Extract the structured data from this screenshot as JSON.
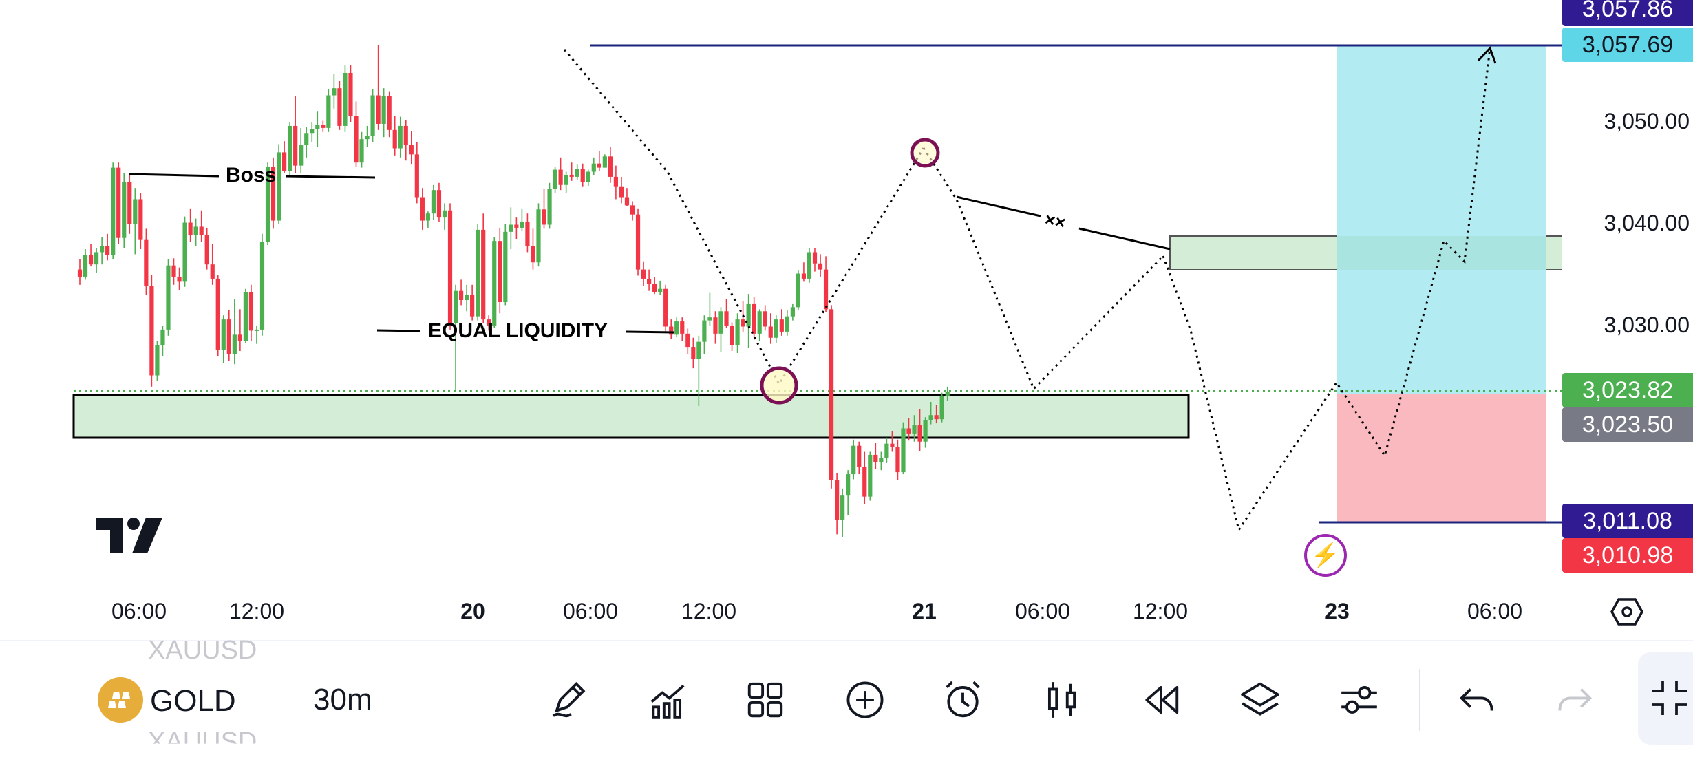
{
  "symbol": {
    "name": "GOLD",
    "ticker": "XAUUSD",
    "interval": "30m"
  },
  "price_axis": {
    "levels": [
      "3,050.00",
      "3,040.00",
      "3,030.00"
    ],
    "tags": [
      {
        "label": "3,057.86",
        "color": "#311b92"
      },
      {
        "label": "3,057.69",
        "color": "#5fd5e8",
        "text_color": "#131722"
      },
      {
        "label": "3,023.82",
        "color": "#4caf50"
      },
      {
        "label": "3,023.50",
        "color": "#787b86"
      },
      {
        "label": "3,011.08",
        "color": "#311b92"
      },
      {
        "label": "3,010.98",
        "color": "#f23645"
      }
    ]
  },
  "time_axis": [
    {
      "label": "06:00",
      "bold": false
    },
    {
      "label": "12:00",
      "bold": false
    },
    {
      "label": "20",
      "bold": true
    },
    {
      "label": "06:00",
      "bold": false
    },
    {
      "label": "12:00",
      "bold": false
    },
    {
      "label": "21",
      "bold": true
    },
    {
      "label": "06:00",
      "bold": false
    },
    {
      "label": "12:00",
      "bold": false
    },
    {
      "label": "23",
      "bold": true
    },
    {
      "label": "06:00",
      "bold": false
    }
  ],
  "annotations": {
    "boss": "Boss",
    "equal_liquidity": "EQUAL LIQUIDITY",
    "xx": "××"
  },
  "toolbar": {
    "items": [
      "pencil-icon",
      "indicators-icon",
      "grid-icon",
      "add-icon",
      "alarm-icon",
      "candles-icon",
      "replay-icon",
      "layers-icon",
      "settings-sliders-icon",
      "undo-icon",
      "redo-icon",
      "fullscreen-icon"
    ]
  },
  "colors": {
    "up": "#4caf50",
    "down": "#f23645",
    "zone": "#d4edd6",
    "target": "#b2ebf2",
    "stop": "#f9b9bf",
    "line": "#1a237e"
  },
  "chart_data": {
    "type": "candlestick",
    "symbol": "XAUUSD",
    "interval": "30m",
    "ylim": [
      3005,
      3060
    ],
    "candles": [
      [
        3035.5,
        3036.5,
        3034,
        3034.8
      ],
      [
        3034.8,
        3037.5,
        3034.5,
        3036.9
      ],
      [
        3036.9,
        3038,
        3035.8,
        3036
      ],
      [
        3036,
        3037.6,
        3035.2,
        3037.2
      ],
      [
        3037.2,
        3038.7,
        3036,
        3037.8
      ],
      [
        3037.8,
        3039,
        3036.4,
        3036.9
      ],
      [
        3036.9,
        3046,
        3036.5,
        3045.5
      ],
      [
        3045.5,
        3046,
        3038,
        3038.6
      ],
      [
        3038.6,
        3045,
        3037.6,
        3044.1
      ],
      [
        3044.1,
        3045,
        3039,
        3040
      ],
      [
        3040,
        3043.5,
        3037,
        3042.4
      ],
      [
        3042.4,
        3043,
        3037.5,
        3038.4
      ],
      [
        3038.4,
        3039.5,
        3033,
        3033.9
      ],
      [
        3033.9,
        3035,
        3024,
        3025.1
      ],
      [
        3025.1,
        3028.5,
        3024.6,
        3028.1
      ],
      [
        3028.1,
        3030,
        3027,
        3029.6
      ],
      [
        3029.6,
        3036.5,
        3029,
        3035.9
      ],
      [
        3035.9,
        3036.6,
        3034,
        3034.8
      ],
      [
        3034.8,
        3035.7,
        3033.5,
        3034.3
      ],
      [
        3034.3,
        3040.7,
        3033.8,
        3040.1
      ],
      [
        3040.1,
        3041.5,
        3038.2,
        3038.9
      ],
      [
        3038.9,
        3040.5,
        3037.8,
        3039.7
      ],
      [
        3039.7,
        3041.3,
        3038.2,
        3038.9
      ],
      [
        3038.9,
        3039.6,
        3035.5,
        3036
      ],
      [
        3036,
        3038,
        3034,
        3034.6
      ],
      [
        3034.6,
        3035,
        3027,
        3027.6
      ],
      [
        3027.6,
        3031,
        3026.3,
        3030.6
      ],
      [
        3030.6,
        3031.5,
        3026.5,
        3027.2
      ],
      [
        3027.2,
        3032.6,
        3026.2,
        3029.1
      ],
      [
        3029.1,
        3031.6,
        3027.5,
        3028.5
      ],
      [
        3028.5,
        3033.6,
        3028.3,
        3033.3
      ],
      [
        3033.3,
        3034,
        3028.5,
        3029.5
      ],
      [
        3029.5,
        3030,
        3028.2,
        3029.6
      ],
      [
        3029.6,
        3039,
        3029,
        3038.2
      ],
      [
        3038.2,
        3046,
        3037.9,
        3045.6
      ],
      [
        3045.6,
        3046.5,
        3039.5,
        3040.3
      ],
      [
        3040.3,
        3047.8,
        3040,
        3047
      ],
      [
        3047,
        3048.1,
        3045,
        3045.2
      ],
      [
        3045.2,
        3050,
        3044.6,
        3049.6
      ],
      [
        3049.6,
        3052.5,
        3045,
        3045.7
      ],
      [
        3045.7,
        3049.4,
        3045,
        3047.7
      ],
      [
        3047.7,
        3049.5,
        3046.5,
        3048.9
      ],
      [
        3048.9,
        3050,
        3048,
        3049.3
      ],
      [
        3049.3,
        3051,
        3047.5,
        3049.7
      ],
      [
        3049.7,
        3050.1,
        3049,
        3049.4
      ],
      [
        3049.4,
        3053.2,
        3049,
        3052.6
      ],
      [
        3052.6,
        3054.7,
        3051.3,
        3053.3
      ],
      [
        3053.3,
        3054,
        3049.2,
        3049.6
      ],
      [
        3049.6,
        3055.6,
        3049,
        3054.8
      ],
      [
        3054.8,
        3055.6,
        3050,
        3050.6
      ],
      [
        3050.6,
        3052,
        3045.6,
        3046
      ],
      [
        3046,
        3049,
        3045.5,
        3048.3
      ],
      [
        3048.3,
        3049.6,
        3047.5,
        3048.6
      ],
      [
        3048.6,
        3053.2,
        3048,
        3052.6
      ],
      [
        3052.6,
        3057.5,
        3049.2,
        3049.8
      ],
      [
        3049.8,
        3053.3,
        3048.5,
        3052.5
      ],
      [
        3052.5,
        3053,
        3048.5,
        3049.2
      ],
      [
        3049.2,
        3050.6,
        3046.7,
        3047.4
      ],
      [
        3047.4,
        3050.5,
        3046.5,
        3049.6
      ],
      [
        3049.6,
        3050.2,
        3046.2,
        3047.7
      ],
      [
        3047.7,
        3049.1,
        3045.8,
        3046.8
      ],
      [
        3046.8,
        3048,
        3042,
        3042.6
      ],
      [
        3042.6,
        3043.5,
        3039.4,
        3040.3
      ],
      [
        3040.3,
        3041.2,
        3039.6,
        3041
      ],
      [
        3041,
        3043.8,
        3040.4,
        3043.3
      ],
      [
        3043.3,
        3044,
        3040.2,
        3040.6
      ],
      [
        3040.6,
        3042,
        3039.4,
        3041.3
      ],
      [
        3041.3,
        3042,
        3029.6,
        3030.2
      ],
      [
        3030.2,
        3034,
        3023.5,
        3033.4
      ],
      [
        3033.4,
        3034.5,
        3032,
        3032.5
      ],
      [
        3032.5,
        3034,
        3031.4,
        3033
      ],
      [
        3033,
        3034,
        3030.5,
        3030.9
      ],
      [
        3030.9,
        3040,
        3030.5,
        3039.4
      ],
      [
        3039.4,
        3041,
        3030.2,
        3030.6
      ],
      [
        3030.6,
        3031,
        3029.5,
        3030
      ],
      [
        3030,
        3038.7,
        3029.8,
        3038.3
      ],
      [
        3038.3,
        3039.6,
        3031.2,
        3032.3
      ],
      [
        3032.3,
        3040,
        3032,
        3039.2
      ],
      [
        3039.2,
        3041.6,
        3037.5,
        3039.9
      ],
      [
        3039.9,
        3040.6,
        3038.5,
        3039.6
      ],
      [
        3039.6,
        3041.5,
        3039.3,
        3040.2
      ],
      [
        3040.2,
        3041,
        3037.2,
        3037.8
      ],
      [
        3037.8,
        3039.5,
        3035.5,
        3036.2
      ],
      [
        3036.2,
        3042,
        3035.8,
        3041.4
      ],
      [
        3041.4,
        3043.4,
        3039.5,
        3039.9
      ],
      [
        3039.9,
        3044,
        3039.5,
        3043.4
      ],
      [
        3043.4,
        3045.6,
        3043,
        3045.3
      ],
      [
        3045.3,
        3046.5,
        3043.3,
        3043.8
      ],
      [
        3043.8,
        3045.1,
        3043,
        3044.8
      ],
      [
        3044.8,
        3046,
        3044.2,
        3044.6
      ],
      [
        3044.6,
        3045.8,
        3044.3,
        3045.4
      ],
      [
        3045.4,
        3045.9,
        3043.6,
        3044.1
      ],
      [
        3044.1,
        3045.3,
        3043.7,
        3045.1
      ],
      [
        3045.1,
        3046.5,
        3044.8,
        3045.9
      ],
      [
        3045.9,
        3047.1,
        3045.2,
        3045.5
      ],
      [
        3045.5,
        3046.8,
        3045.5,
        3046.6
      ],
      [
        3046.6,
        3047.5,
        3044,
        3044.6
      ],
      [
        3044.6,
        3045.7,
        3042.4,
        3043.6
      ],
      [
        3043.6,
        3044.6,
        3042,
        3042.6
      ],
      [
        3042.6,
        3043.5,
        3041.7,
        3041.8
      ],
      [
        3041.8,
        3042.2,
        3040.3,
        3040.9
      ],
      [
        3040.9,
        3041.5,
        3034.9,
        3035.5
      ],
      [
        3035.5,
        3036.3,
        3033.9,
        3034.6
      ],
      [
        3034.6,
        3035.5,
        3033.4,
        3034.1
      ],
      [
        3034.1,
        3034.8,
        3033.1,
        3033.3
      ],
      [
        3033.3,
        3034.4,
        3033,
        3033.6
      ],
      [
        3033.6,
        3034,
        3029.4,
        3029.9
      ],
      [
        3029.9,
        3030.6,
        3028.7,
        3029.1
      ],
      [
        3029.1,
        3030.8,
        3028.9,
        3030.4
      ],
      [
        3030.4,
        3030.8,
        3028.5,
        3029.2
      ],
      [
        3029.2,
        3029.7,
        3027.2,
        3027.9
      ],
      [
        3027.9,
        3028.8,
        3025.8,
        3026.7
      ],
      [
        3026.7,
        3029,
        3022.1,
        3028.4
      ],
      [
        3028.4,
        3031,
        3027.2,
        3030.5
      ],
      [
        3030.5,
        3033.2,
        3030,
        3030.8
      ],
      [
        3030.8,
        3031.4,
        3028.2,
        3029.2
      ],
      [
        3029.2,
        3031.8,
        3027.4,
        3031.4
      ],
      [
        3031.4,
        3032.6,
        3029.8,
        3030
      ],
      [
        3030,
        3030.3,
        3027.5,
        3028.1
      ],
      [
        3028.1,
        3031.2,
        3027.3,
        3030.6
      ],
      [
        3030.6,
        3032.4,
        3029.4,
        3029.9
      ],
      [
        3029.9,
        3033.1,
        3027.8,
        3032.1
      ],
      [
        3032.1,
        3032.8,
        3028.8,
        3029.2
      ],
      [
        3029.2,
        3031.6,
        3028.5,
        3031.4
      ],
      [
        3031.4,
        3032,
        3029.5,
        3029.9
      ],
      [
        3029.9,
        3031.2,
        3028.2,
        3028.8
      ],
      [
        3028.8,
        3031,
        3028.3,
        3030.6
      ],
      [
        3030.6,
        3031.6,
        3029,
        3029.4
      ],
      [
        3029.4,
        3031.5,
        3029,
        3030.9
      ],
      [
        3030.9,
        3032.1,
        3030.5,
        3031.8
      ],
      [
        3031.8,
        3035.4,
        3031.5,
        3035.1
      ],
      [
        3035.1,
        3036.2,
        3034.3,
        3034.6
      ],
      [
        3034.6,
        3037.6,
        3034.2,
        3037.2
      ],
      [
        3037.2,
        3037.6,
        3035.3,
        3036.1
      ],
      [
        3036.1,
        3037,
        3034.8,
        3035.5
      ],
      [
        3035.5,
        3036.8,
        3031.3,
        3031.6
      ],
      [
        3031.6,
        3032,
        3014,
        3014.8
      ],
      [
        3014.8,
        3015.5,
        3009.5,
        3010.9
      ],
      [
        3010.9,
        3014,
        3009.2,
        3013.3
      ],
      [
        3013.3,
        3015.8,
        3011.4,
        3015.4
      ],
      [
        3015.4,
        3018.8,
        3014.9,
        3018.2
      ],
      [
        3018.2,
        3018.6,
        3015.4,
        3016.1
      ],
      [
        3016.1,
        3017.6,
        3012.5,
        3013.2
      ],
      [
        3013.2,
        3017.6,
        3012.8,
        3017.3
      ],
      [
        3017.3,
        3018.5,
        3015.9,
        3016.6
      ],
      [
        3016.6,
        3017.6,
        3015.8,
        3017
      ],
      [
        3017,
        3019,
        3016.5,
        3018.4
      ],
      [
        3018.4,
        3019.6,
        3017.6,
        3018.1
      ],
      [
        3018.1,
        3018.8,
        3014.8,
        3015.6
      ],
      [
        3015.6,
        3020.5,
        3015.4,
        3019.9
      ],
      [
        3019.9,
        3020.9,
        3018.7,
        3019.4
      ],
      [
        3019.4,
        3021.2,
        3018.6,
        3020.2
      ],
      [
        3020.2,
        3021.8,
        3017.7,
        3018.6
      ],
      [
        3018.6,
        3021,
        3018,
        3020.7
      ],
      [
        3020.7,
        3022.5,
        3020.3,
        3021.2
      ],
      [
        3021.2,
        3022.2,
        3020.4,
        3020.8
      ],
      [
        3020.8,
        3023.4,
        3020.5,
        3023.1
      ],
      [
        3023.1,
        3024,
        3022.6,
        3023.5
      ]
    ]
  }
}
